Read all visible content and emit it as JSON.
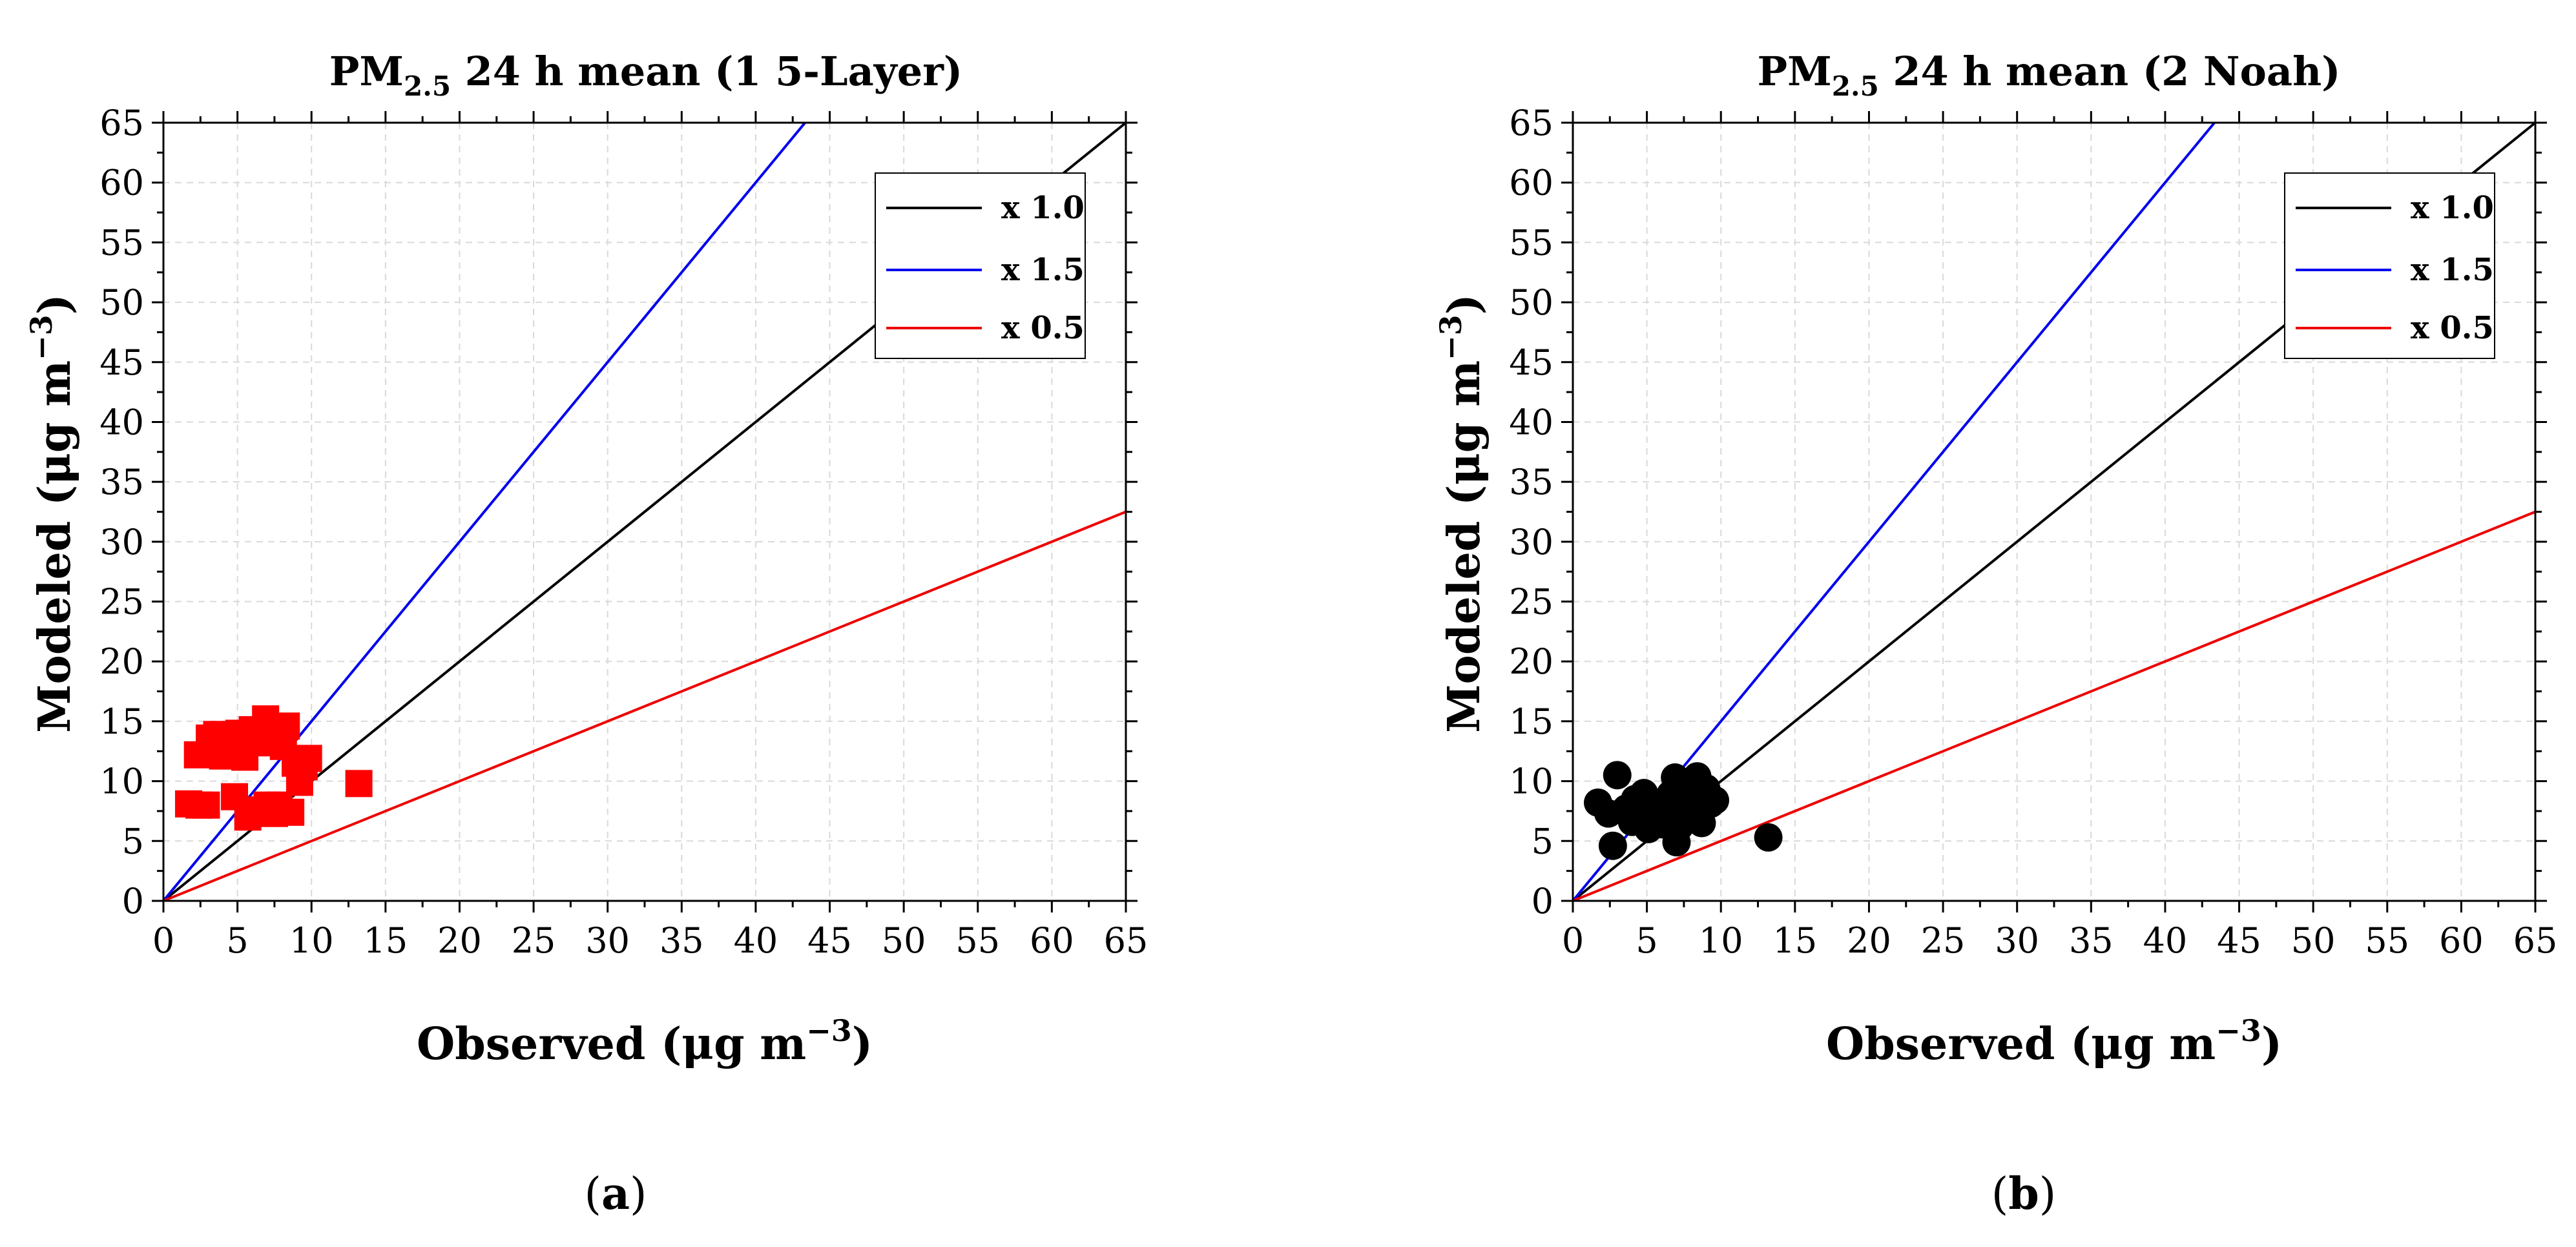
{
  "chart_data": [
    {
      "type": "scatter",
      "panel": "a",
      "caption_letter": "a",
      "title_prefix": "PM",
      "title_subscript": "2.5",
      "title_suffix": " 24 h mean (1 5-Layer)",
      "xlabel_text": "Observed (μg m",
      "xlabel_exp": "−3",
      "xlabel_close": ")",
      "ylabel_text": "Modeled (μg m",
      "ylabel_exp": "−3",
      "ylabel_close": ")",
      "xlim": [
        0,
        65
      ],
      "ylim": [
        0,
        65
      ],
      "major_ticks": [
        0,
        5,
        10,
        15,
        20,
        25,
        30,
        35,
        40,
        45,
        50,
        55,
        60,
        65
      ],
      "grid": true,
      "legend_position": "top-right",
      "reference_lines": [
        {
          "name": "x 1.0",
          "slope": 1.0,
          "color": "#000000"
        },
        {
          "name": "x 1.5",
          "slope": 1.5,
          "color": "#0000ee"
        },
        {
          "name": "x 0.5",
          "slope": 0.5,
          "color": "#ee0000"
        }
      ],
      "marker": "square",
      "marker_color": "#ff0000",
      "points": [
        [
          1.7,
          8.1
        ],
        [
          2.4,
          8.0
        ],
        [
          2.9,
          8.0
        ],
        [
          2.3,
          12.2
        ],
        [
          3.1,
          13.6
        ],
        [
          3.6,
          13.9
        ],
        [
          4.0,
          12.1
        ],
        [
          4.5,
          12.6
        ],
        [
          4.8,
          8.7
        ],
        [
          5.1,
          14.0
        ],
        [
          5.4,
          12.8
        ],
        [
          5.7,
          7.0
        ],
        [
          6.0,
          14.3
        ],
        [
          6.3,
          13.2
        ],
        [
          6.6,
          7.6
        ],
        [
          6.9,
          15.2
        ],
        [
          7.2,
          13.9
        ],
        [
          7.5,
          7.3
        ],
        [
          7.8,
          8.0
        ],
        [
          8.1,
          12.9
        ],
        [
          8.3,
          14.6
        ],
        [
          8.6,
          7.4
        ],
        [
          8.9,
          11.5
        ],
        [
          9.2,
          9.9
        ],
        [
          9.5,
          11.2
        ],
        [
          9.8,
          11.9
        ],
        [
          13.2,
          9.8
        ],
        [
          5.5,
          12.0
        ],
        [
          7.0,
          8.0
        ]
      ]
    },
    {
      "type": "scatter",
      "panel": "b",
      "caption_letter": "b",
      "title_prefix": "PM",
      "title_subscript": "2.5",
      "title_suffix": " 24 h mean (2 Noah)",
      "xlabel_text": "Observed (μg m",
      "xlabel_exp": "−3",
      "xlabel_close": ")",
      "ylabel_text": "Modeled (μg m",
      "ylabel_exp": "−3",
      "ylabel_close": ")",
      "xlim": [
        0,
        65
      ],
      "ylim": [
        0,
        65
      ],
      "major_ticks": [
        0,
        5,
        10,
        15,
        20,
        25,
        30,
        35,
        40,
        45,
        50,
        55,
        60,
        65
      ],
      "grid": true,
      "legend_position": "top-right",
      "reference_lines": [
        {
          "name": "x 1.0",
          "slope": 1.0,
          "color": "#000000"
        },
        {
          "name": "x 1.5",
          "slope": 1.5,
          "color": "#0000ee"
        },
        {
          "name": "x 0.5",
          "slope": 0.5,
          "color": "#ee0000"
        }
      ],
      "marker": "circle",
      "marker_color": "#000000",
      "points": [
        [
          1.7,
          8.2
        ],
        [
          2.4,
          7.3
        ],
        [
          2.7,
          4.6
        ],
        [
          3.0,
          10.5
        ],
        [
          3.6,
          7.7
        ],
        [
          4.2,
          8.5
        ],
        [
          4.8,
          9.0
        ],
        [
          5.1,
          6.0
        ],
        [
          5.4,
          7.0
        ],
        [
          5.7,
          8.1
        ],
        [
          6.0,
          6.4
        ],
        [
          6.3,
          7.5
        ],
        [
          6.6,
          8.9
        ],
        [
          6.9,
          10.3
        ],
        [
          7.0,
          4.9
        ],
        [
          7.2,
          6.2
        ],
        [
          7.5,
          8.3
        ],
        [
          7.8,
          9.6
        ],
        [
          8.1,
          6.9
        ],
        [
          8.4,
          10.4
        ],
        [
          8.7,
          6.5
        ],
        [
          9.0,
          9.4
        ],
        [
          9.3,
          8.1
        ],
        [
          9.6,
          8.4
        ],
        [
          13.2,
          5.3
        ],
        [
          7.9,
          7.8
        ],
        [
          4.0,
          6.6
        ]
      ]
    }
  ]
}
